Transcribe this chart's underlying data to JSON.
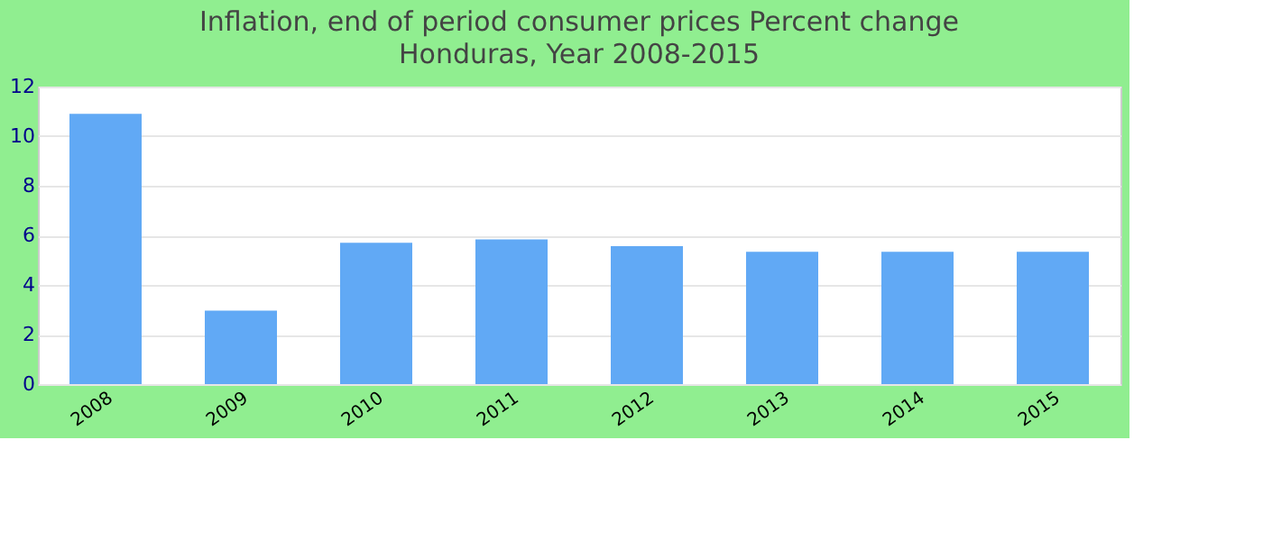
{
  "chart_data": {
    "type": "bar",
    "title": "Inflation, end of period consumer prices  Percent change",
    "subtitle": "Honduras, Year 2008-2015",
    "categories": [
      "2008",
      "2009",
      "2010",
      "2011",
      "2012",
      "2013",
      "2014",
      "2015"
    ],
    "values": [
      10.9,
      2.96,
      5.7,
      5.84,
      5.56,
      5.34,
      5.34,
      5.34
    ],
    "color": "#61a9f5",
    "ylim": [
      0,
      12
    ],
    "yticks": [
      0,
      2,
      4,
      6,
      8,
      10,
      12
    ],
    "grid": "y"
  }
}
